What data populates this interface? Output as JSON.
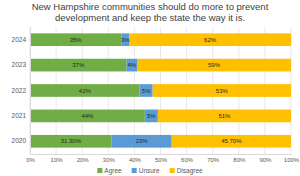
{
  "chart_data": {
    "type": "bar",
    "orientation": "horizontal",
    "stacked": true,
    "data_labels": true,
    "grid": true,
    "legend": "bottom",
    "title": "New Hampshire communities should do more to prevent development and keep the state the way it is.",
    "categories": [
      "2024",
      "2023",
      "2022",
      "2021",
      "2020"
    ],
    "series": [
      {
        "name": "Agree",
        "color": "#70ad47",
        "values": [
          35,
          37,
          42,
          44,
          31.3
        ],
        "value_labels": [
          "35%",
          "37%",
          "42%",
          "44%",
          "31.30%"
        ]
      },
      {
        "name": "Unsure",
        "color": "#5b9bd5",
        "values": [
          3,
          4,
          5,
          5,
          23
        ],
        "value_labels": [
          "3%",
          "4%",
          "5%",
          "5%",
          "23%"
        ]
      },
      {
        "name": "Disagree",
        "color": "#ffc000",
        "values": [
          62,
          59,
          53,
          51,
          45.7
        ],
        "value_labels": [
          "62%",
          "59%",
          "53%",
          "51%",
          "45.70%"
        ]
      }
    ],
    "xlim": [
      0,
      100
    ],
    "xticks": [
      {
        "value": 0,
        "label": "0%"
      },
      {
        "value": 10,
        "label": "10%"
      },
      {
        "value": 20,
        "label": "20%"
      },
      {
        "value": 30,
        "label": "30%"
      },
      {
        "value": 40,
        "label": "40%"
      },
      {
        "value": 50,
        "label": "50%"
      },
      {
        "value": 60,
        "label": "60%"
      },
      {
        "value": 70,
        "label": "70%"
      },
      {
        "value": 80,
        "label": "80%"
      },
      {
        "value": 90,
        "label": "90%"
      },
      {
        "value": 100,
        "label": "100%"
      }
    ]
  }
}
